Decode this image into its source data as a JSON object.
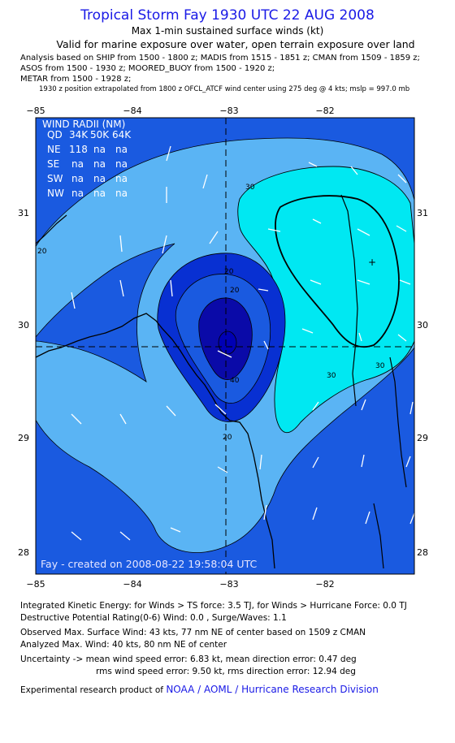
{
  "header": {
    "title": "Tropical Storm Fay 1930 UTC 22 AUG 2008",
    "subtitle": "Max 1-min sustained surface winds (kt)",
    "validity": "Valid for marine exposure over water, open terrain exposure over land",
    "analysis_lines": [
      "Analysis based on  SHIP from 1500 - 1800 z;  MADIS from 1515 - 1851 z;  CMAN from 1509 - 1859 z;",
      "ASOS from 1500 - 1930 z;  MOORED_BUOY from 1500 - 1920 z;",
      "METAR from 1500 - 1928 z;"
    ],
    "position_note": "1930 z position extrapolated from 1800 z OFCL_ATCF wind center using 275 deg @ 4 kts; mslp = 997.0 mb"
  },
  "map": {
    "x_ticks": [
      "−85",
      "−84",
      "−83",
      "−82"
    ],
    "y_ticks": [
      "31",
      "30",
      "29",
      "28"
    ],
    "contour_labels": [
      "30",
      "30",
      "20",
      "20",
      "30",
      "20",
      "40",
      "20"
    ],
    "credit": "Fay - created on 2008-08-22 19:58:04 UTC",
    "colors": {
      "outer": "#1a5ae0",
      "light": "#5ab4f4",
      "cyan": "#00e8f2",
      "core": "#0a0aa8",
      "center": "#0000b4",
      "mid": "#0830d2"
    }
  },
  "wind_radii": {
    "title": "WIND RADII (NM)",
    "header": [
      "QD",
      "34K",
      "50K",
      "64K"
    ],
    "rows": [
      [
        "NE",
        "118",
        "na",
        "na"
      ],
      [
        "SE",
        "na",
        "na",
        "na"
      ],
      [
        "SW",
        "na",
        "na",
        "na"
      ],
      [
        "NW",
        "na",
        "na",
        "na"
      ]
    ]
  },
  "footer": {
    "ike": "Integrated Kinetic Energy:  for Winds > TS force: 3.5 TJ,  for Winds > Hurricane Force: 0.0 TJ",
    "dpr": "Destructive Potential Rating(0-6)   Wind: 0.0 , Surge/Waves: 1.1",
    "observed": "Observed Max. Surface Wind: 43 kts, 77 nm NE of center based on 1509 z CMAN",
    "analyzed": "Analyzed Max. Wind: 40 kts, 80 nm NE of center",
    "uncertainty1": "Uncertainty -> mean wind speed error: 6.83 kt,   mean direction error: 0.47 deg",
    "uncertainty2": "rms wind speed error: 9.50 kt,   rms direction error: 12.94 deg",
    "credit_prefix": "Experimental research product of ",
    "credit_link": "NOAA / AOML / Hurricane Research Division"
  }
}
